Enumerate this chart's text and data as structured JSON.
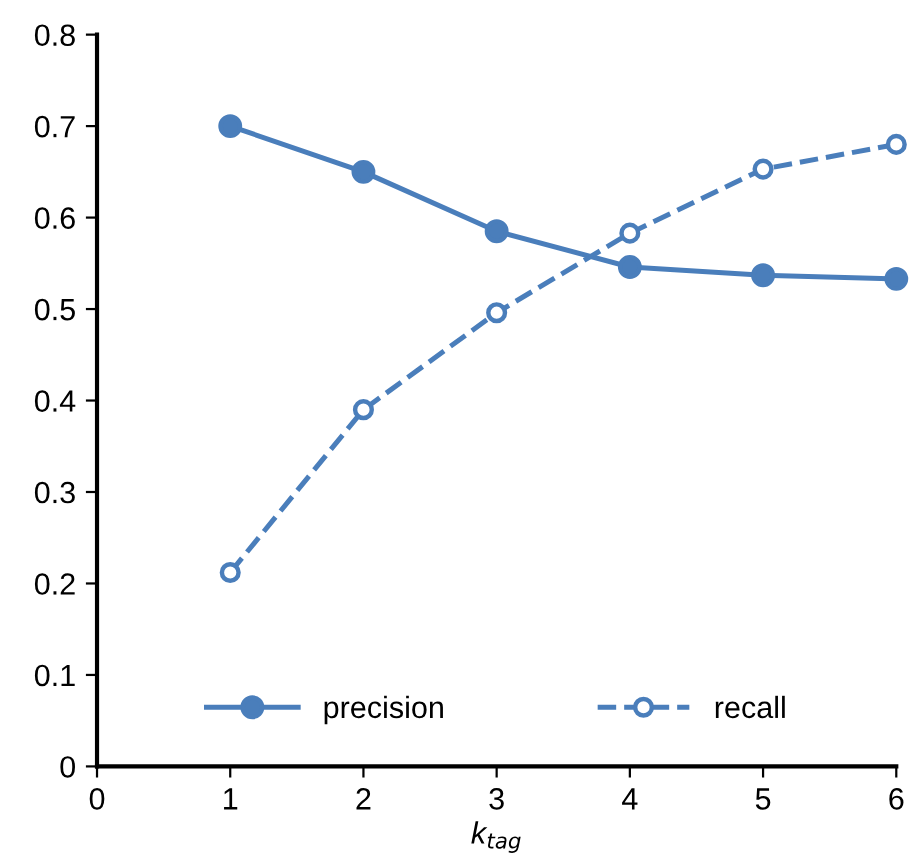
{
  "chart_data": {
    "type": "line",
    "xlabel": "k$_{tag}$",
    "x": [
      1,
      2,
      3,
      4,
      5,
      6
    ],
    "series": [
      {
        "name": "precision",
        "color": "#4a7ebb",
        "values": [
          0.7,
          0.65,
          0.585,
          0.546,
          0.537,
          0.533
        ],
        "marker": "circle",
        "line_style": "solid"
      },
      {
        "name": "recall",
        "color": "#4a7ebb",
        "values": [
          0.212,
          0.39,
          0.496,
          0.583,
          0.653,
          0.68
        ],
        "marker": "circle",
        "line_style": "dashed"
      }
    ],
    "xlim": [
      0,
      6
    ],
    "xticks": [
      0,
      1,
      2,
      3,
      4,
      5,
      6
    ],
    "ylim": [
      0,
      0.8
    ],
    "yticks": [
      0,
      0.1,
      0.2,
      0.3,
      0.4,
      0.5,
      0.6,
      0.7,
      0.8
    ],
    "grid": false,
    "legend": "bottom"
  }
}
